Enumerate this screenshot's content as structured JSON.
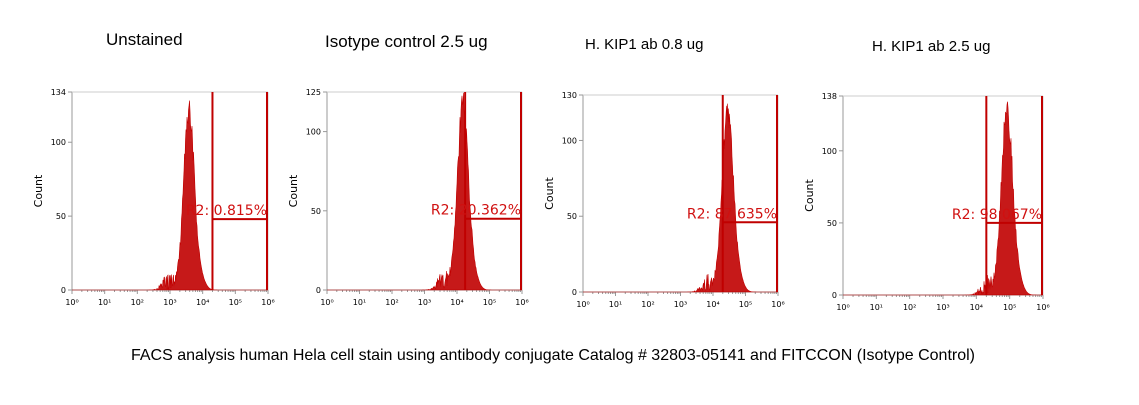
{
  "caption": "FACS analysis human Hela cell stain using antibody conjugate Catalog # 32803-05141 and FITCCON (Isotype Control)",
  "colors": {
    "data": "#c00000",
    "gate": "#c00000",
    "label": "#d01010",
    "axis": "#999999"
  },
  "chart_data": [
    {
      "type": "area",
      "title": "Unstained",
      "ylabel": "Count",
      "ymax": 134,
      "yticks": [
        0,
        50,
        100,
        134
      ],
      "xlim_log10": [
        0,
        6
      ],
      "xticks": [
        "10⁰",
        "10¹",
        "10²",
        "10³",
        "10⁴",
        "10⁵",
        "10⁶"
      ],
      "peak_log10": 3.58,
      "peak_width": 0.16,
      "peak_height": 134,
      "gate_log10": [
        4.3,
        6.0
      ],
      "gate_label": "R2: 0.815%",
      "gate_y": 48
    },
    {
      "type": "area",
      "title": "Isotype control 2.5 ug",
      "ylabel": "Count",
      "ymax": 125,
      "yticks": [
        0,
        50,
        100,
        125
      ],
      "xlim_log10": [
        0,
        6
      ],
      "xticks": [
        "10⁰",
        "10¹",
        "10²",
        "10³",
        "10⁴",
        "10⁵",
        "10⁶"
      ],
      "peak_log10": 4.18,
      "peak_width": 0.17,
      "peak_height": 125,
      "gate_log10": [
        4.25,
        6.0
      ],
      "gate_label": "R2: 20.362%",
      "gate_y": 45
    },
    {
      "type": "area",
      "title": "H. KIP1 ab 0.8 ug",
      "ylabel": "Count",
      "ymax": 130,
      "yticks": [
        0,
        50,
        100,
        130
      ],
      "xlim_log10": [
        0,
        6
      ],
      "xticks": [
        "10⁰",
        "10¹",
        "10²",
        "10³",
        "10⁴",
        "10⁵",
        "10⁶"
      ],
      "peak_log10": 4.45,
      "peak_width": 0.17,
      "peak_height": 130,
      "gate_log10": [
        4.3,
        6.0
      ],
      "gate_label": "R2: 87.635%",
      "gate_y": 46
    },
    {
      "type": "area",
      "title": "H. KIP1 ab 2.5 ug",
      "ylabel": "Count",
      "ymax": 138,
      "yticks": [
        0,
        50,
        100,
        138
      ],
      "xlim_log10": [
        0,
        6
      ],
      "xticks": [
        "10⁰",
        "10¹",
        "10²",
        "10³",
        "10⁴",
        "10⁵",
        "10⁶"
      ],
      "peak_log10": 4.92,
      "peak_width": 0.17,
      "peak_height": 138,
      "gate_log10": [
        4.3,
        6.0
      ],
      "gate_label": "R2: 98.067%",
      "gate_y": 50
    }
  ]
}
